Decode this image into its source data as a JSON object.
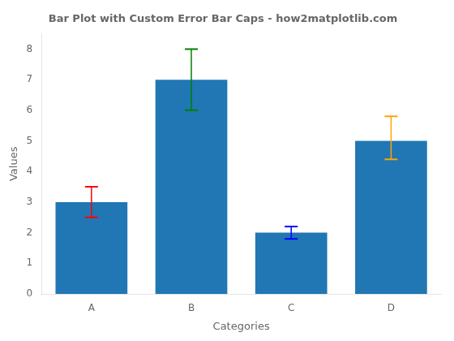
{
  "chart_data": {
    "type": "bar",
    "title": "Bar Plot with Custom Error Bar Caps - how2matplotlib.com",
    "xlabel": "Categories",
    "ylabel": "Values",
    "categories": [
      "A",
      "B",
      "C",
      "D"
    ],
    "values": [
      3,
      7,
      2,
      5
    ],
    "color": "#2077b4",
    "error_upper": [
      0.5,
      1.0,
      0.2,
      0.8
    ],
    "error_lower": [
      0.5,
      1.0,
      0.2,
      0.6
    ],
    "error_colors": [
      "red",
      "green",
      "blue",
      "orange"
    ],
    "ylim": [
      0,
      8.5
    ],
    "yticks": [
      0,
      1,
      2,
      3,
      4,
      5,
      6,
      7,
      8
    ],
    "grid": false
  }
}
